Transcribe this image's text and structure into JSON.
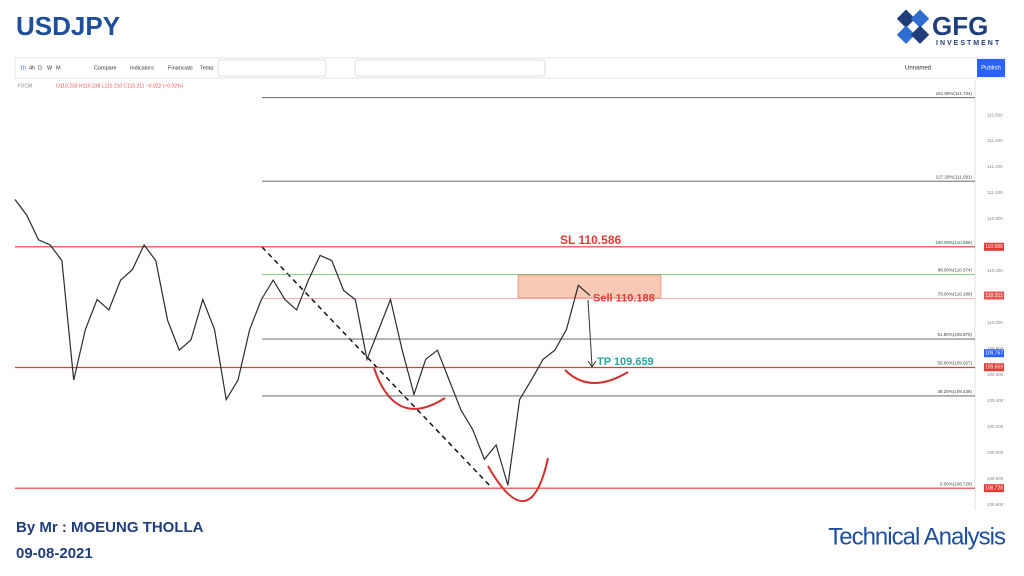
{
  "header": {
    "title": "USDJPY",
    "logo_text": "GFG",
    "logo_subtitle": "INVESTMENT"
  },
  "toolbar": {
    "intervals": [
      "1h",
      "4h",
      "D",
      "W",
      "M"
    ],
    "buttons": [
      "Compare",
      "Indicators",
      "Financials",
      "Temp"
    ],
    "layout_name": "Unnamed",
    "publish": "Publish"
  },
  "legend": {
    "source": "FXCM",
    "ohlc": "O110.233 H110.238 L110.210 C110.211 −0.022 (−0.02%)"
  },
  "chart_data": {
    "type": "line",
    "color": "#2b2b2b",
    "values": [
      110.95,
      110.83,
      110.64,
      110.6,
      110.48,
      109.56,
      109.95,
      110.18,
      110.1,
      110.33,
      110.41,
      110.6,
      110.48,
      110.02,
      109.79,
      109.87,
      110.18,
      109.95,
      109.41,
      109.56,
      109.95,
      110.18,
      110.33,
      110.18,
      110.1,
      110.33,
      110.52,
      110.48,
      110.25,
      110.18,
      109.72,
      109.95,
      110.18,
      109.79,
      109.45,
      109.72,
      109.79,
      109.56,
      109.33,
      109.18,
      108.95,
      109.06,
      108.75,
      109.41,
      109.56,
      109.72,
      109.79,
      109.95,
      110.29,
      110.21
    ],
    "ylim": [
      108.56,
      111.87
    ],
    "yticks": [
      {
        "value": 111.6,
        "label": "111.600"
      },
      {
        "value": 111.4,
        "label": "111.400"
      },
      {
        "value": 111.2,
        "label": "111.200"
      },
      {
        "value": 111.0,
        "label": "111.000"
      },
      {
        "value": 110.8,
        "label": "110.800"
      },
      {
        "value": 110.6,
        "label": "110.600"
      },
      {
        "value": 110.4,
        "label": "110.400"
      },
      {
        "value": 110.2,
        "label": "110.200"
      },
      {
        "value": 110.0,
        "label": "110.000"
      },
      {
        "value": 109.8,
        "label": "109.800"
      },
      {
        "value": 109.6,
        "label": "109.600"
      },
      {
        "value": 109.4,
        "label": "109.400"
      },
      {
        "value": 109.2,
        "label": "109.200"
      },
      {
        "value": 109.0,
        "label": "109.000"
      },
      {
        "value": 108.8,
        "label": "108.800"
      },
      {
        "value": 108.6,
        "label": "108.600"
      }
    ],
    "fib_levels": [
      {
        "value": 111.734,
        "label": "161.80%(111.734)",
        "color": "#555555"
      },
      {
        "value": 111.091,
        "label": "127.20%(111.091)",
        "color": "#555555"
      },
      {
        "value": 110.586,
        "label": "100.00%(110.586)",
        "color": "#e53935"
      },
      {
        "value": 110.374,
        "label": "88.00%(110.374)",
        "color": "#66bb6a"
      },
      {
        "value": 110.188,
        "label": "78.60%(110.188)",
        "color": "#ef9a9a"
      },
      {
        "value": 109.876,
        "label": "61.80%(109.876)",
        "color": "#555555"
      },
      {
        "value": 109.657,
        "label": "50.00%(109.657)",
        "color": "#e53935"
      },
      {
        "value": 109.438,
        "label": "38.20%(109.438)",
        "color": "#555555"
      },
      {
        "value": 108.728,
        "label": "0.00%(108.728)",
        "color": "#e53935"
      }
    ],
    "annotations": [
      {
        "value": 110.586,
        "label": "SL 110.586",
        "color": "#e53935"
      },
      {
        "value": 110.188,
        "label": "Sell 110.188",
        "color": "#e53935"
      },
      {
        "value": 109.659,
        "label": "TP 109.659",
        "color": "#26a69a"
      }
    ],
    "price_labels": [
      {
        "value": 110.586,
        "label": "110.586",
        "color": "#e53935"
      },
      {
        "value": 110.211,
        "label": "110.211",
        "color": "#ef5350"
      },
      {
        "value": 109.767,
        "label": "109.767",
        "color": "#2962ff"
      },
      {
        "value": 109.659,
        "label": "109.659",
        "color": "#e53935"
      },
      {
        "value": 108.728,
        "label": "108.728",
        "color": "#e53935"
      }
    ]
  },
  "footer": {
    "author": "By Mr : MOEUNG THOLLA",
    "date": "09-08-2021",
    "caption": "Technical Analysis"
  }
}
